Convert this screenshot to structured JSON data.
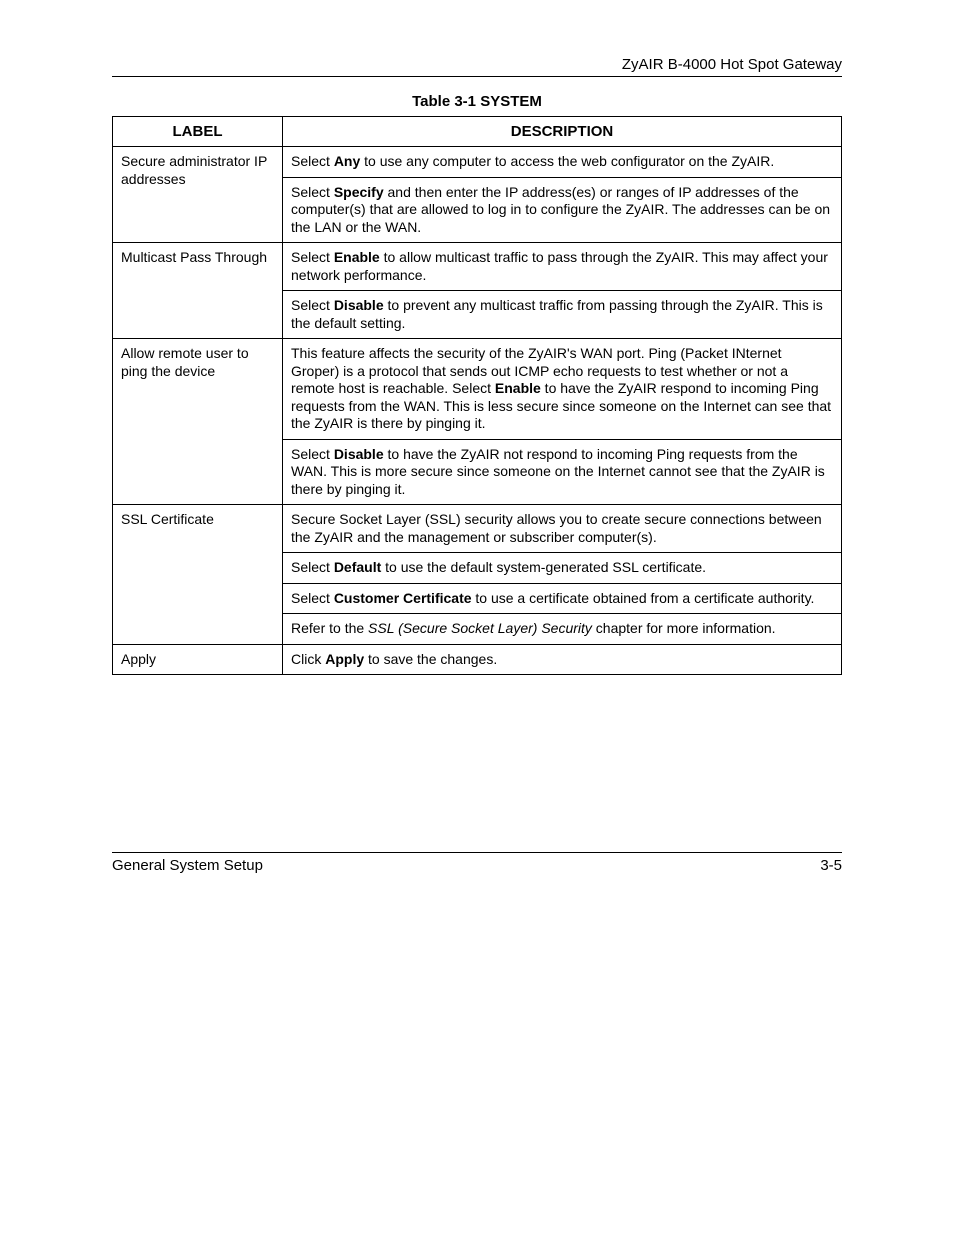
{
  "header": {
    "doc_title": "ZyAIR B-4000 Hot Spot Gateway"
  },
  "table": {
    "caption": "Table 3-1 SYSTEM",
    "columns": [
      "LABEL",
      "DESCRIPTION"
    ],
    "rows": [
      {
        "label": "Secure administrator IP addresses",
        "paras": [
          [
            {
              "t": "Select "
            },
            {
              "t": "Any",
              "b": true
            },
            {
              "t": " to use any computer to access the web configurator on the ZyAIR."
            }
          ],
          [
            {
              "t": "Select "
            },
            {
              "t": "Specify",
              "b": true
            },
            {
              "t": " and then enter the IP address(es) or ranges of IP addresses of the computer(s) that are allowed to log in to configure the ZyAIR. The addresses can be on the LAN or the WAN."
            }
          ]
        ]
      },
      {
        "label": "Multicast Pass Through",
        "paras": [
          [
            {
              "t": "Select "
            },
            {
              "t": "Enable",
              "b": true
            },
            {
              "t": " to allow multicast traffic to pass through the ZyAIR. This may affect your network performance."
            }
          ],
          [
            {
              "t": "Select "
            },
            {
              "t": "Disable",
              "b": true
            },
            {
              "t": " to prevent any multicast traffic from passing through the ZyAIR. This is the default setting."
            }
          ]
        ]
      },
      {
        "label": "Allow remote user to ping the device",
        "paras": [
          [
            {
              "t": "This feature affects the security of the ZyAIR's WAN port. Ping (Packet INternet Groper) is a protocol that sends out ICMP echo requests to test whether or not a remote host is reachable. Select "
            },
            {
              "t": "Enable",
              "b": true
            },
            {
              "t": " to have the ZyAIR respond to incoming Ping requests from the WAN. This is less secure since someone on the Internet can see that the ZyAIR is there by pinging it."
            }
          ],
          [
            {
              "t": "Select "
            },
            {
              "t": "Disable",
              "b": true
            },
            {
              "t": " to have the ZyAIR not respond to incoming Ping requests from the WAN. This is more secure since someone on the Internet cannot see that the ZyAIR is there by pinging it."
            }
          ]
        ]
      },
      {
        "label": "SSL Certificate",
        "paras": [
          [
            {
              "t": "Secure Socket Layer (SSL) security allows you to create secure connections between the ZyAIR and the management or subscriber computer(s)."
            }
          ],
          [
            {
              "t": "Select "
            },
            {
              "t": "Default",
              "b": true
            },
            {
              "t": " to use the default system-generated SSL certificate."
            }
          ],
          [
            {
              "t": "Select "
            },
            {
              "t": "Customer Certificate",
              "b": true
            },
            {
              "t": " to use a certificate obtained from a certificate authority."
            }
          ],
          [
            {
              "t": "Refer to the "
            },
            {
              "t": "SSL (Secure Socket Layer) Security",
              "i": true
            },
            {
              "t": " chapter for more information."
            }
          ]
        ]
      },
      {
        "label": "Apply",
        "paras": [
          [
            {
              "t": "Click "
            },
            {
              "t": "Apply",
              "b": true
            },
            {
              "t": " to save the changes."
            }
          ]
        ]
      }
    ]
  },
  "footer": {
    "section": "General System Setup",
    "page": "3-5"
  }
}
